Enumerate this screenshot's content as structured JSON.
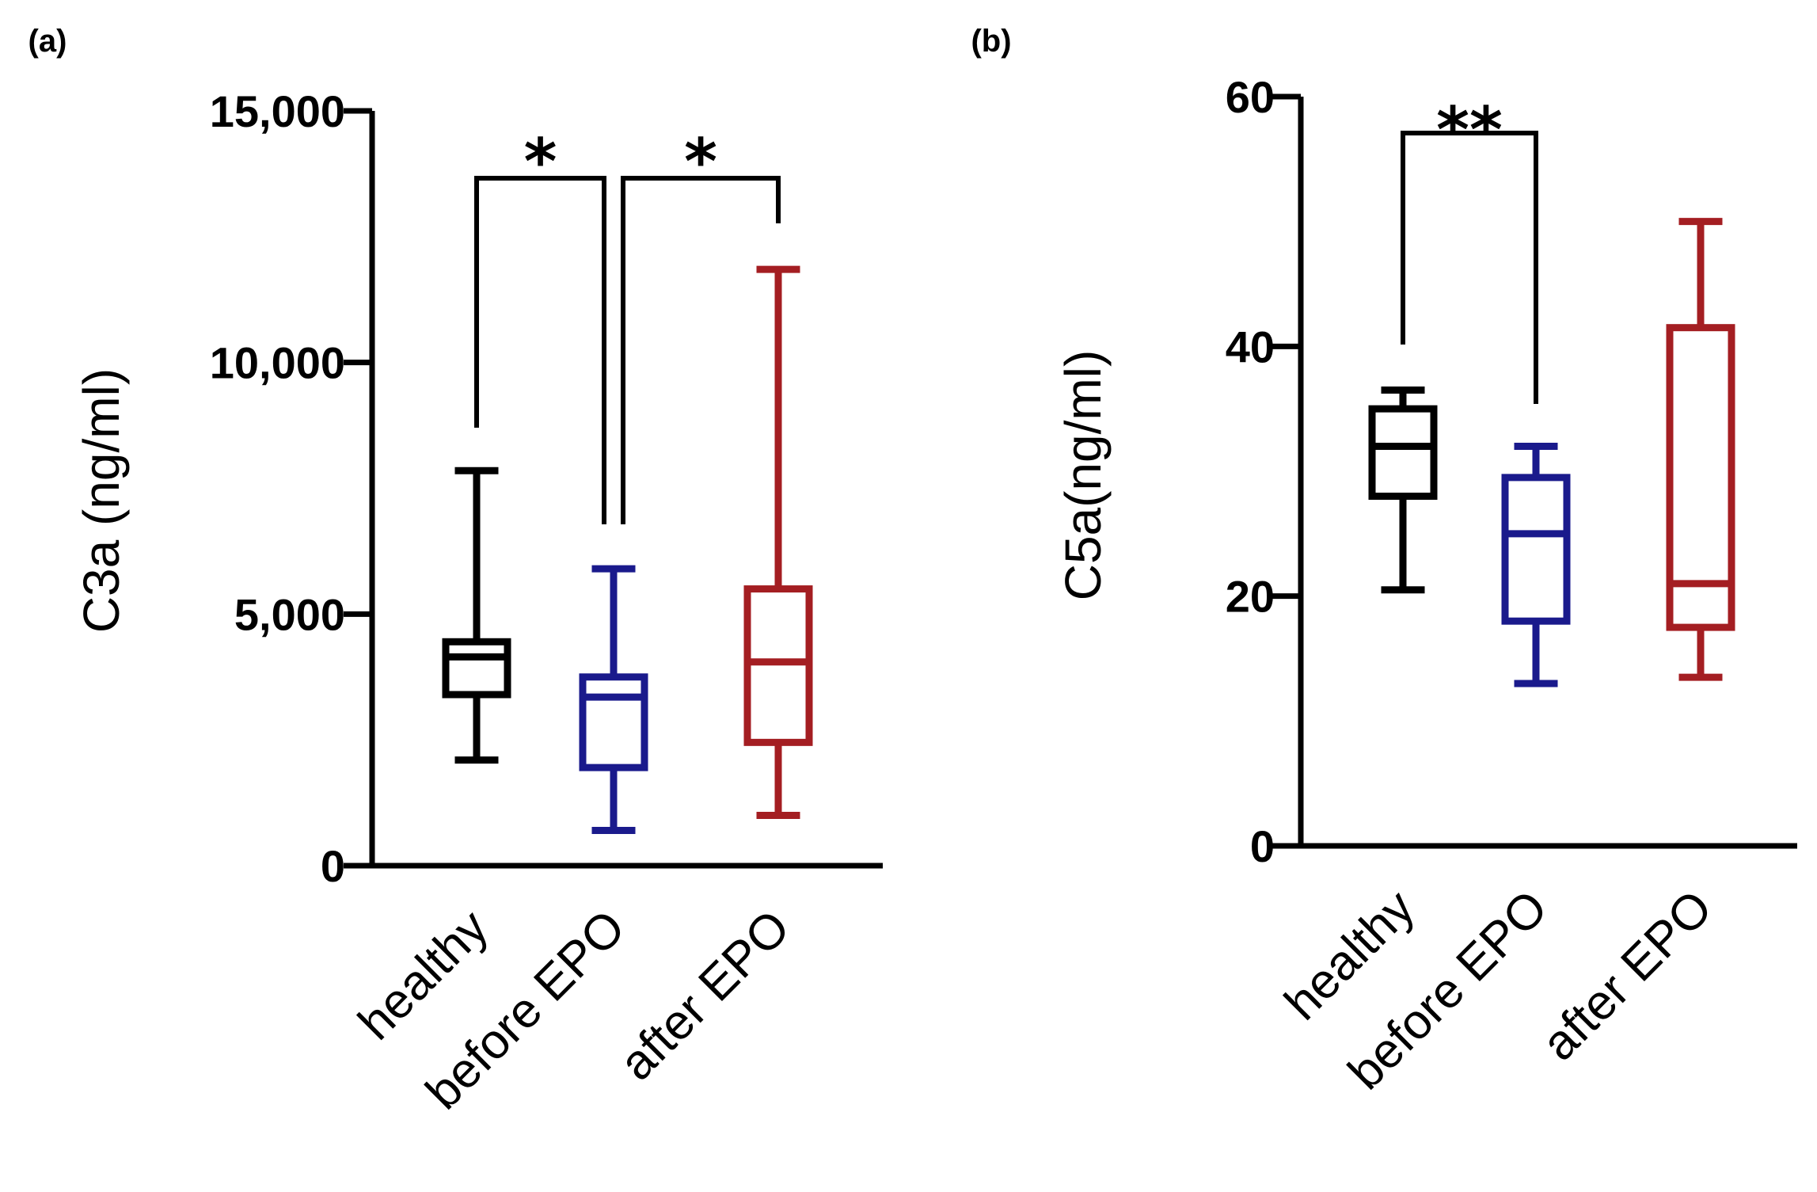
{
  "chart_data": [
    {
      "type": "box",
      "panel_label": "(a)",
      "ylabel": "C3a (ng/ml)",
      "categories": [
        "healthy",
        "before EPO",
        "after EPO"
      ],
      "ylim": [
        0,
        15000
      ],
      "yticks": [
        0,
        5000,
        10000,
        15000
      ],
      "ytick_labels": [
        "0",
        "5,000",
        "10,000",
        "15,000"
      ],
      "boxes": [
        {
          "category": "healthy",
          "min": 2100,
          "q1": 3400,
          "median": 4150,
          "q3": 4450,
          "max": 7850,
          "color": "#000000"
        },
        {
          "category": "before EPO",
          "min": 700,
          "q1": 1950,
          "median": 3350,
          "q3": 3750,
          "max": 5900,
          "color": "#1a1a8c"
        },
        {
          "category": "after EPO",
          "min": 1000,
          "q1": 2450,
          "median": 4050,
          "q3": 5500,
          "max": 11850,
          "color": "#a41e22"
        }
      ],
      "significance": [
        {
          "from": 0,
          "to": 1,
          "label": "*"
        },
        {
          "from": 1,
          "to": 2,
          "label": "*"
        }
      ],
      "grid": false
    },
    {
      "type": "box",
      "panel_label": "(b)",
      "ylabel": "C5a(ng/ml)",
      "categories": [
        "healthy",
        "before EPO",
        "after EPO"
      ],
      "ylim": [
        0,
        60
      ],
      "yticks": [
        0,
        20,
        40,
        60
      ],
      "ytick_labels": [
        "0",
        "20",
        "40",
        "60"
      ],
      "boxes": [
        {
          "category": "healthy",
          "min": 20.5,
          "q1": 28,
          "median": 32,
          "q3": 35,
          "max": 36.5,
          "color": "#000000"
        },
        {
          "category": "before EPO",
          "min": 13,
          "q1": 18,
          "median": 25,
          "q3": 29.5,
          "max": 32,
          "color": "#1a1a8c"
        },
        {
          "category": "after EPO",
          "min": 13.5,
          "q1": 17.5,
          "median": 21,
          "q3": 41.5,
          "max": 50,
          "color": "#a41e22"
        }
      ],
      "significance": [
        {
          "from": 0,
          "to": 1,
          "label": "**"
        }
      ],
      "grid": false
    }
  ]
}
